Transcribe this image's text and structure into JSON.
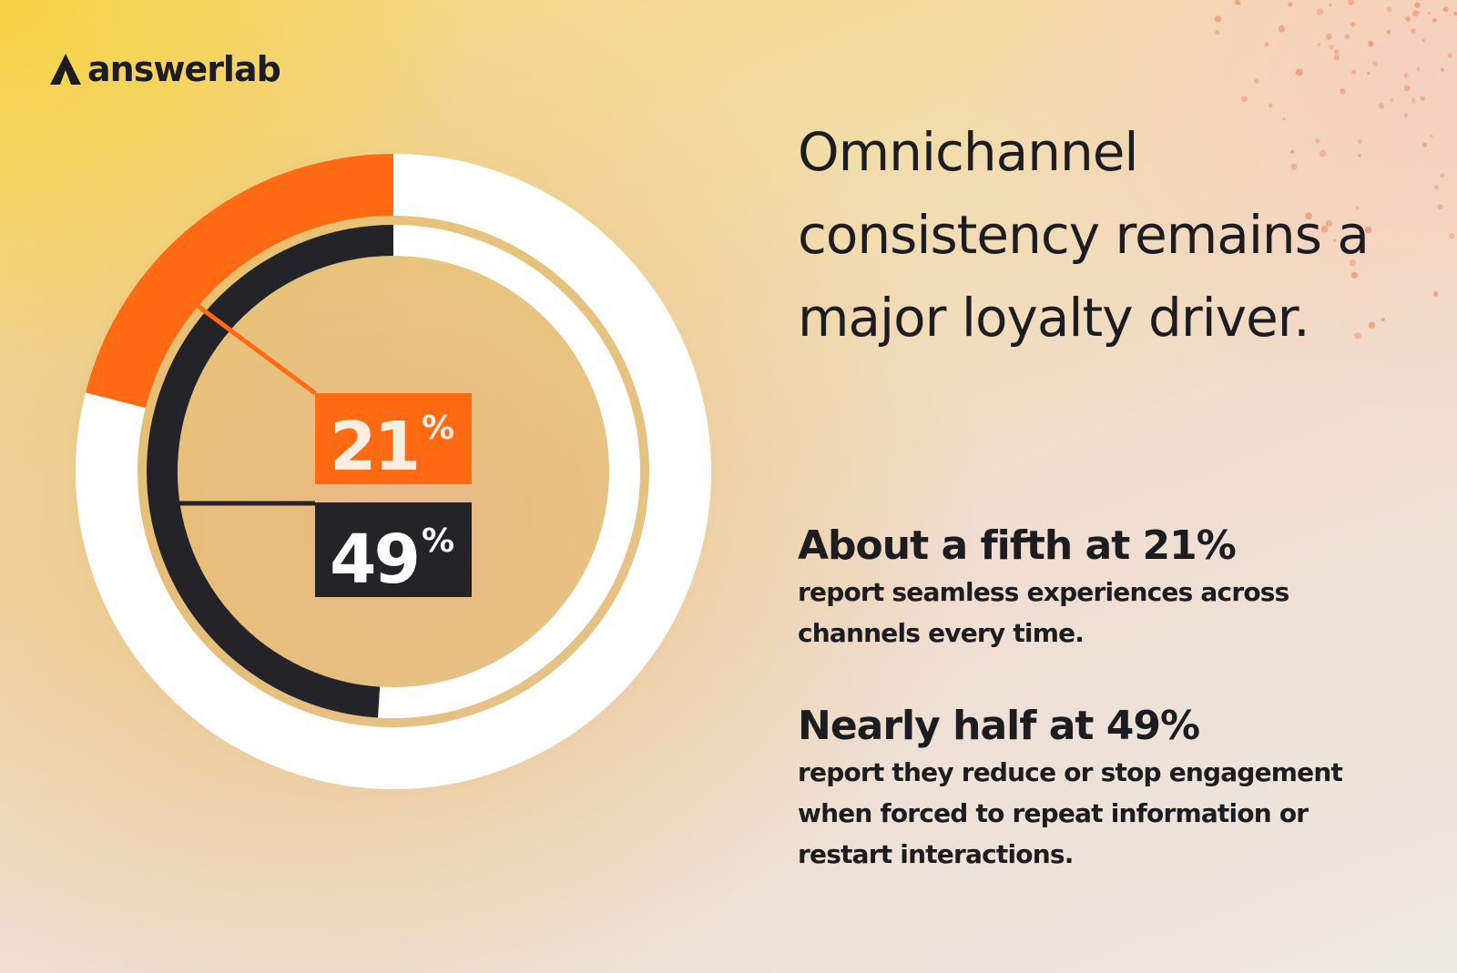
{
  "brand": {
    "name": "answerlab"
  },
  "headline": "Omnichannel consistency remains a major loyalty driver.",
  "stats": [
    {
      "headline": "About a fifth at 21%",
      "body": "report seamless experiences across channels every time."
    },
    {
      "headline": "Nearly half at 49%",
      "body": "report they reduce or stop engagement when forced to repeat information or restart interactions."
    }
  ],
  "colors": {
    "orange": "#ff6a13",
    "dark": "#232328",
    "ring_remainder": "#ffffff",
    "text": "#1d1d21",
    "label_text_on_orange": "#fbeee0"
  },
  "chart_data": {
    "type": "pie",
    "subtype": "concentric-donut",
    "series": [
      {
        "value": 21,
        "unit": "%",
        "label": "21%",
        "color": "#ff6a13",
        "ring": "outer"
      },
      {
        "value": 49,
        "unit": "%",
        "label": "49%",
        "color": "#232328",
        "ring": "inner"
      }
    ],
    "remainder_color": "#ffffff",
    "direction": "counterclockwise from 12 o'clock"
  }
}
